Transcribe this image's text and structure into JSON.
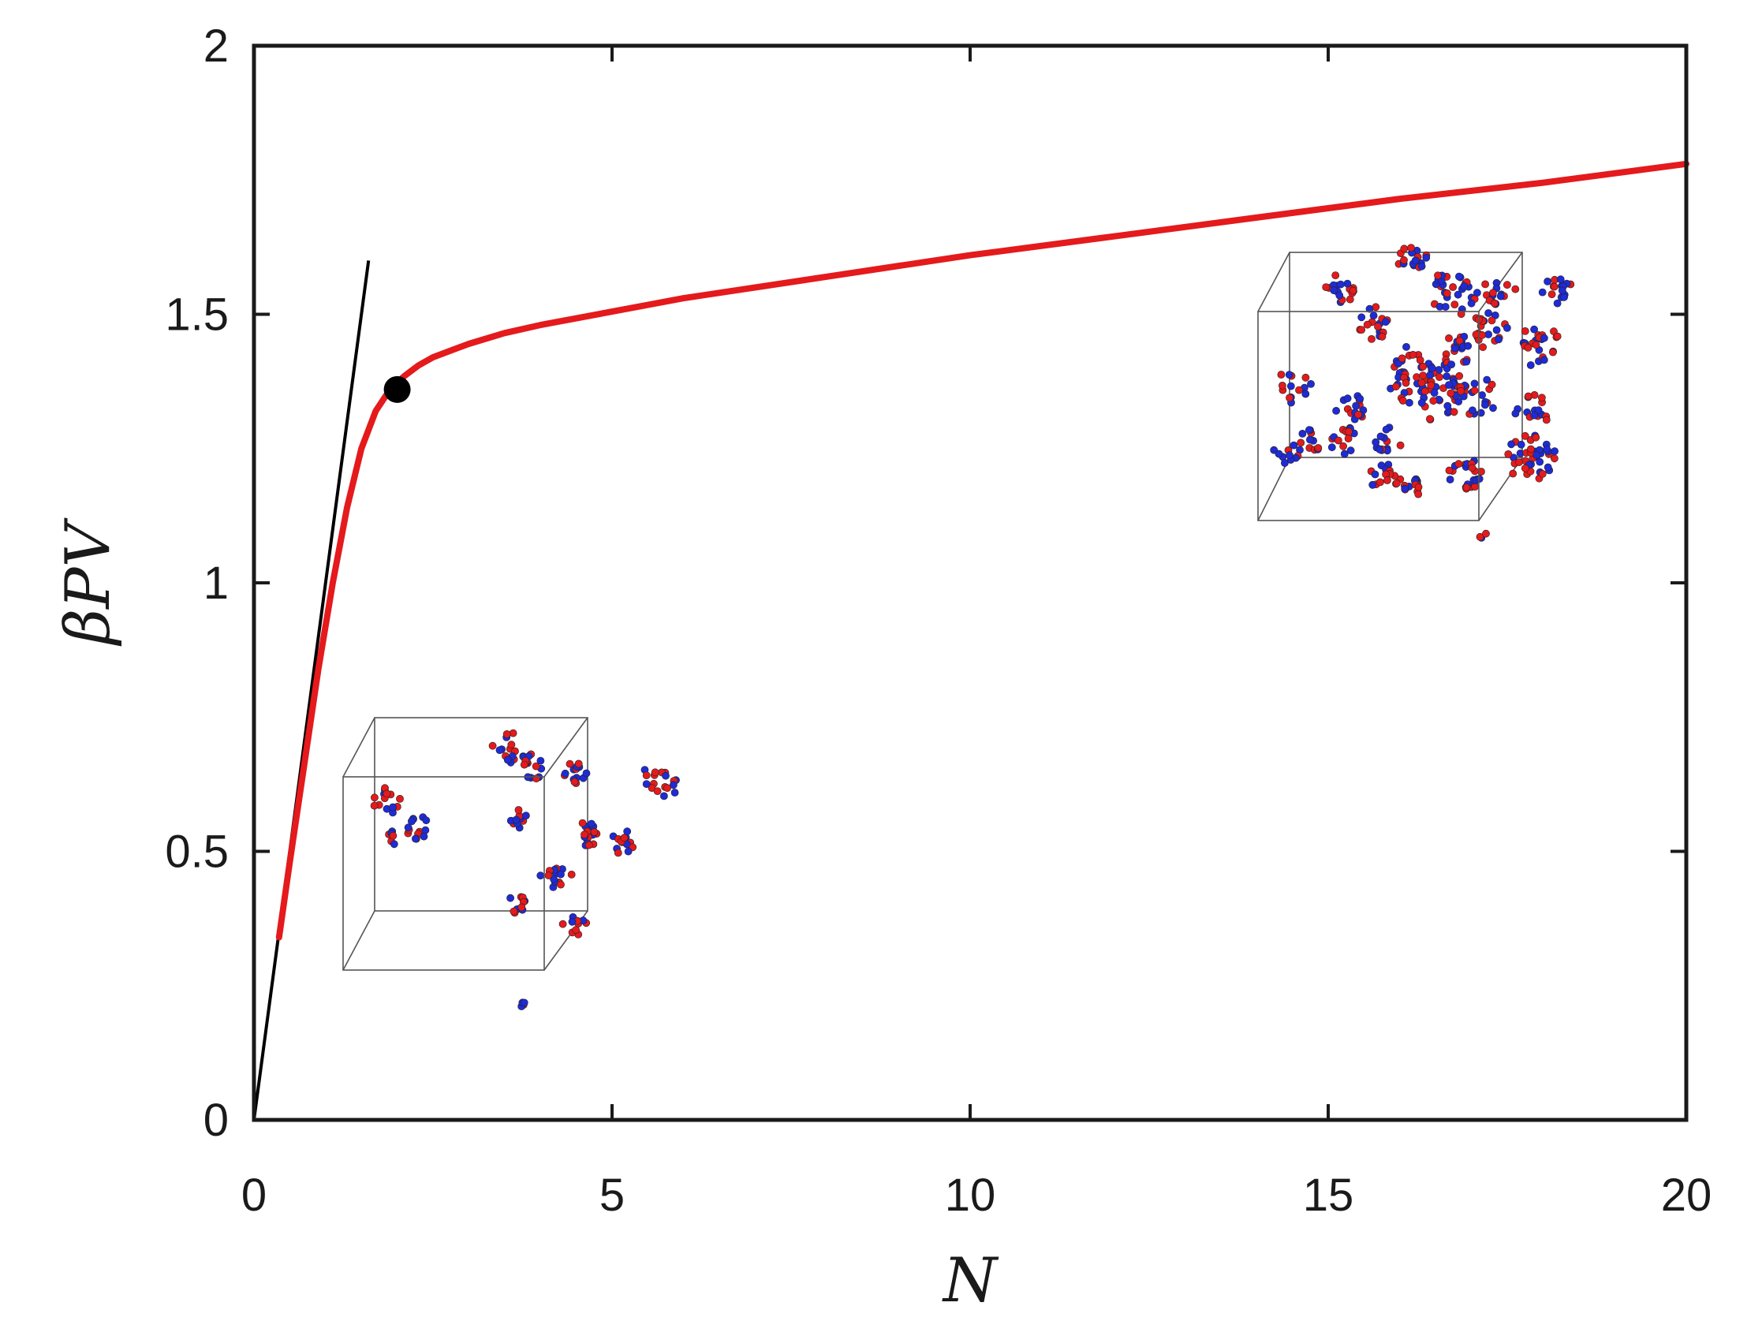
{
  "chart_data": {
    "type": "line",
    "xlabel": "N",
    "ylabel": "βPV",
    "xlim": [
      0,
      20
    ],
    "ylim": [
      0,
      2
    ],
    "xticks": [
      0,
      5,
      10,
      15,
      20
    ],
    "xtick_labels": [
      "0",
      "5",
      "10",
      "15",
      "20"
    ],
    "yticks": [
      0,
      0.5,
      1,
      1.5,
      2
    ],
    "ytick_labels": [
      "0",
      "0.5",
      "1",
      "1.5",
      "2"
    ],
    "grid": false,
    "series": [
      {
        "color": "#e41a1c",
        "x": [
          0.35,
          0.5,
          0.7,
          0.9,
          1.1,
          1.3,
          1.5,
          1.7,
          1.9,
          2.1,
          2.3,
          2.5,
          2.8,
          3.0,
          3.5,
          4.0,
          5.0,
          6.0,
          8.0,
          10.0,
          12.0,
          14.0,
          16.0,
          18.0,
          20.0
        ],
        "y": [
          0.34,
          0.48,
          0.66,
          0.84,
          1.0,
          1.14,
          1.25,
          1.32,
          1.36,
          1.385,
          1.405,
          1.42,
          1.435,
          1.445,
          1.465,
          1.48,
          1.505,
          1.53,
          1.57,
          1.61,
          1.645,
          1.68,
          1.715,
          1.745,
          1.78
        ]
      },
      {
        "color": "#000000",
        "x": [
          0,
          1.6
        ],
        "y": [
          0,
          1.6
        ]
      }
    ],
    "marker": {
      "x": 2.0,
      "y": 1.36,
      "color": "#000000"
    }
  },
  "insets": [
    {
      "name": "low-density-snapshot",
      "particles": "red-and-blue"
    },
    {
      "name": "high-density-snapshot",
      "particles": "red-and-blue"
    }
  ]
}
